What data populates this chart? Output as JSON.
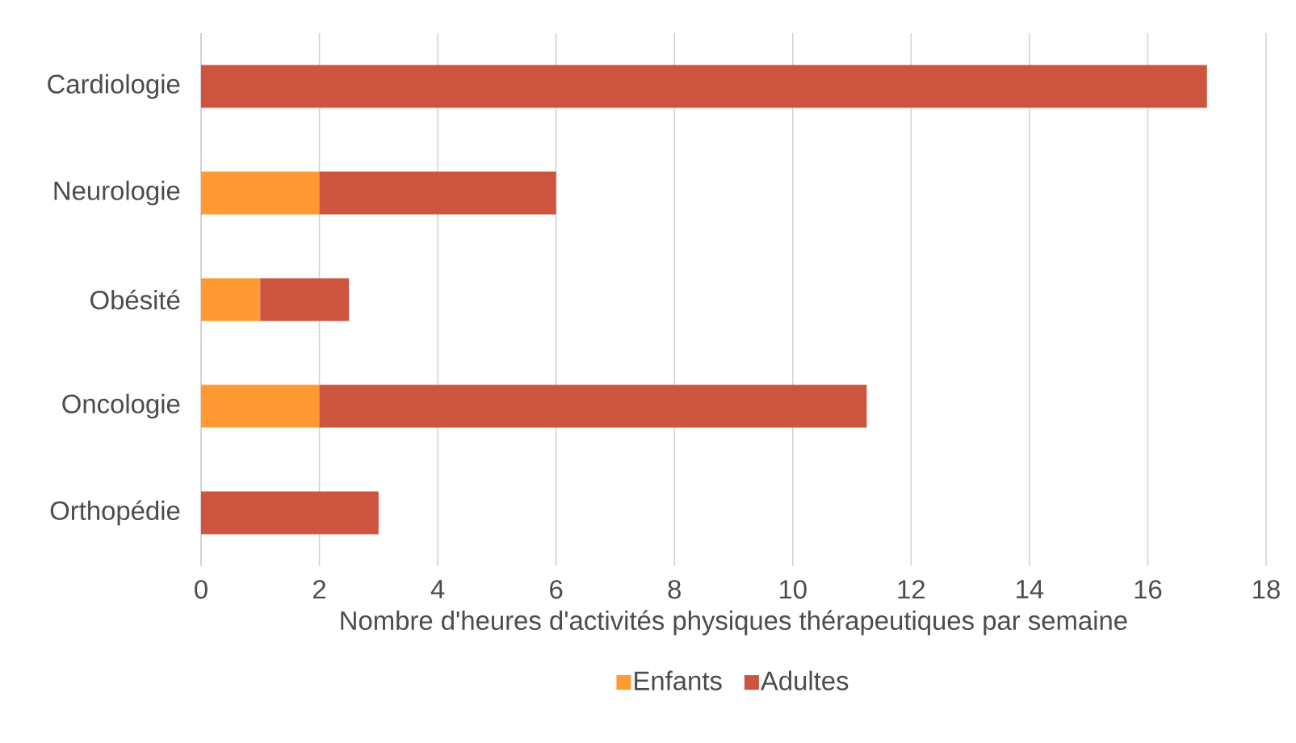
{
  "chart_data": {
    "type": "bar",
    "orientation": "horizontal",
    "stacked": true,
    "categories": [
      "Cardiologie",
      "Neurologie",
      "Obésité",
      "Oncologie",
      "Orthopédie"
    ],
    "series": [
      {
        "name": "Enfants",
        "color": "#ff9933",
        "values": [
          null,
          2,
          1,
          2,
          null
        ]
      },
      {
        "name": "Adultes",
        "color": "#cd553f",
        "values": [
          17,
          4,
          1.5,
          9.25,
          3
        ]
      }
    ],
    "xlabel": "Nombre d'heures d'activités physiques thérapeutiques par semaine",
    "xlim": [
      0,
      18
    ],
    "xticks": [
      0,
      2,
      4,
      6,
      8,
      10,
      12,
      14,
      16,
      18
    ],
    "grid": "x",
    "legend": "bottom"
  }
}
